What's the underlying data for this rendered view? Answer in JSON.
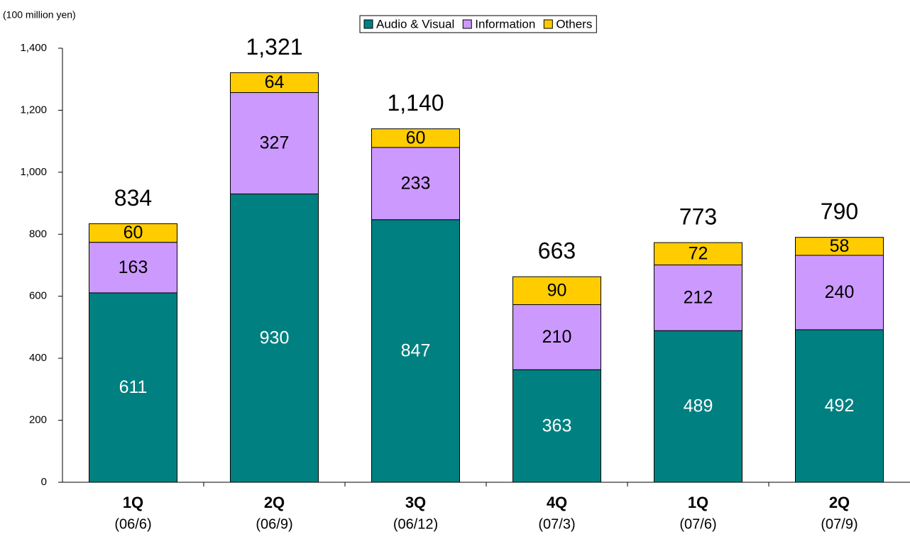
{
  "chart_data": {
    "type": "stacked_bar",
    "y_label": "(100 million yen)",
    "categories": [
      "1Q",
      "2Q",
      "3Q",
      "4Q",
      "1Q",
      "2Q"
    ],
    "sub_categories": [
      "(06/6)",
      "(06/9)",
      "(06/12)",
      "(07/3)",
      "(07/6)",
      "(07/9)"
    ],
    "series": [
      {
        "name": "Audio & Visual",
        "color": "#008080",
        "label_color": "#ffffff",
        "values": [
          611,
          930,
          847,
          363,
          489,
          492
        ]
      },
      {
        "name": "Information",
        "color": "#cc99ff",
        "label_color": "#000000",
        "values": [
          163,
          327,
          233,
          210,
          212,
          240
        ]
      },
      {
        "name": "Others",
        "color": "#ffcc00",
        "label_color": "#000000",
        "values": [
          60,
          64,
          60,
          90,
          72,
          58
        ]
      }
    ],
    "totals": [
      834,
      {
        "value": 1321,
        "label": "1,321"
      },
      {
        "value": 1140,
        "label": "1,140"
      },
      663,
      773,
      790
    ],
    "ylim": [
      0,
      1400
    ],
    "yticks": [
      0,
      200,
      400,
      600,
      800,
      {
        "value": 1000,
        "label": "1,000"
      },
      {
        "value": 1200,
        "label": "1,200"
      },
      {
        "value": 1400,
        "label": "1,400"
      }
    ],
    "legend": "top"
  }
}
